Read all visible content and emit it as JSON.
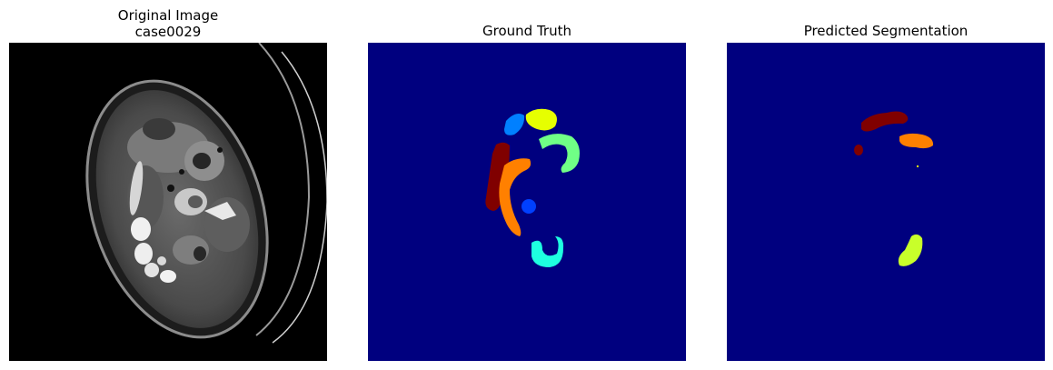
{
  "panels": [
    {
      "title_line_1": "Original Image",
      "title_line_2": "case0029"
    },
    {
      "title": "Ground Truth"
    },
    {
      "title": "Predicted Segmentation"
    }
  ],
  "colors": {
    "ct_background": "#000000",
    "mask_background": "#00007f",
    "label_darkred": "#800000",
    "label_orange": "#ff8000",
    "label_yellow": "#e6ff00",
    "label_green": "#70ff86",
    "label_cyan": "#1effe0",
    "label_blue": "#0040ff",
    "label_azure": "#0080ff"
  }
}
